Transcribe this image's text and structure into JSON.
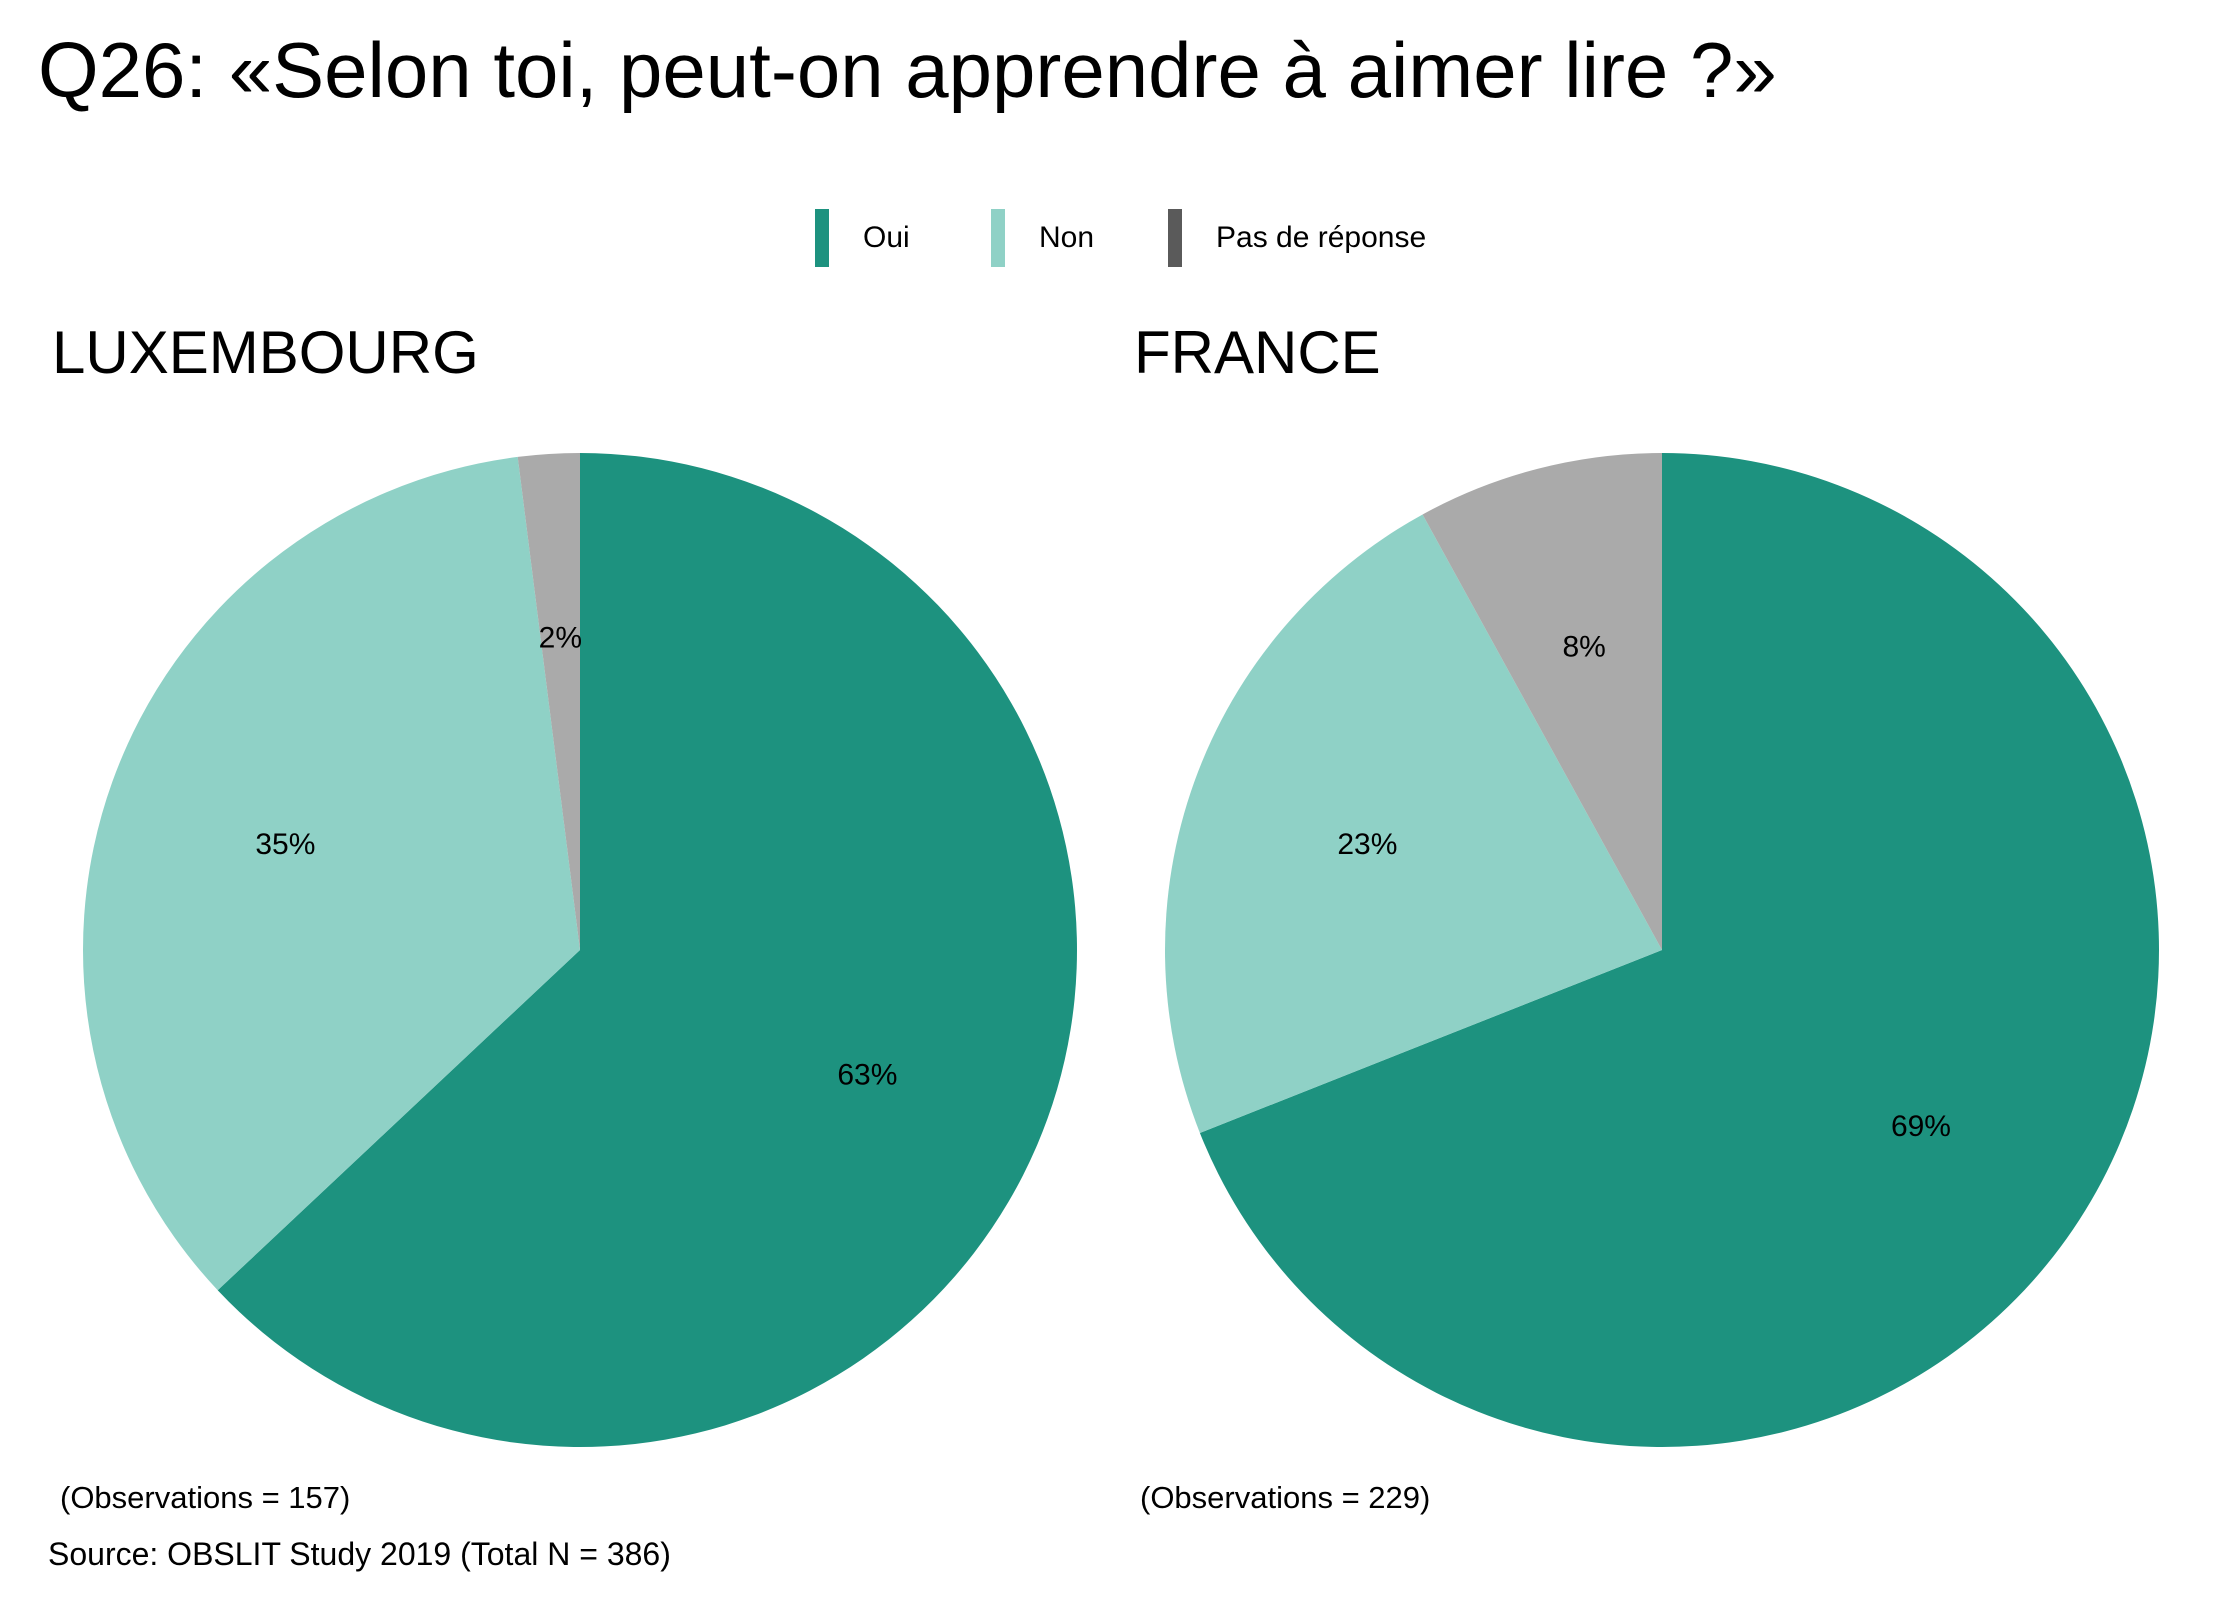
{
  "title": "Q26: «Selon toi, peut-on apprendre à aimer lire ?»",
  "legend": [
    {
      "label": "Oui",
      "color": "#1d927f"
    },
    {
      "label": "Non",
      "color": "#8fd1c6"
    },
    {
      "label": "Pas de réponse",
      "color": "#5a5a5a"
    }
  ],
  "chart_data": [
    {
      "type": "pie",
      "title": "LUXEMBOURG",
      "categories": [
        "Oui",
        "Non",
        "Pas de réponse"
      ],
      "values": [
        63,
        35,
        2
      ],
      "labels": [
        "63%",
        "35%",
        "2%"
      ],
      "colors": [
        "#1d927f",
        "#8fd1c6",
        "#aaaaaa"
      ],
      "observations": "(Observations = 157)"
    },
    {
      "type": "pie",
      "title": "FRANCE",
      "categories": [
        "Oui",
        "Non",
        "Pas de réponse"
      ],
      "values": [
        69,
        23,
        8
      ],
      "labels": [
        "69%",
        "23%",
        "8%"
      ],
      "colors": [
        "#1d927f",
        "#8fd1c6",
        "#aaaaaa"
      ],
      "observations": "(Observations = 229)"
    }
  ],
  "source": "Source: OBSLIT Study 2019 (Total N = 386)"
}
